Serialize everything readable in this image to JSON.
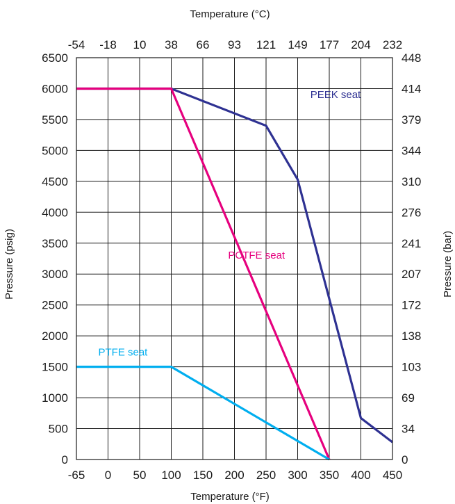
{
  "chart_data": {
    "type": "line",
    "x_axis": {
      "title": "Temperature (°F)",
      "ticks": [
        -65,
        0,
        50,
        100,
        150,
        200,
        250,
        300,
        350,
        400,
        450
      ]
    },
    "x2_axis": {
      "title": "Temperature (°C)",
      "ticks": [
        "-54",
        "-18",
        "10",
        "38",
        "66",
        "93",
        "121",
        "149",
        "177",
        "204",
        "232"
      ]
    },
    "y_axis": {
      "title": "Pressure (psig)",
      "ticks": [
        0,
        500,
        1000,
        1500,
        2000,
        2500,
        3000,
        3500,
        4000,
        4500,
        5000,
        5500,
        6000,
        6500
      ],
      "range": [
        0,
        6500
      ]
    },
    "y2_axis": {
      "title": "Pressure (bar)",
      "ticks": [
        "0",
        "34",
        "69",
        "103",
        "138",
        "172",
        "207",
        "241",
        "276",
        "310",
        "344",
        "379",
        "414",
        "448"
      ]
    },
    "grid": true,
    "series": [
      {
        "name": "PEEK seat",
        "color": "#2e3192",
        "points": [
          [
            -65,
            6000
          ],
          [
            100,
            6000
          ],
          [
            250,
            5400
          ],
          [
            300,
            4530
          ],
          [
            400,
            670
          ],
          [
            450,
            280
          ]
        ],
        "label_at": [
          320,
          5850
        ]
      },
      {
        "name": "PCTFE seat",
        "color": "#e6007e",
        "points": [
          [
            -65,
            6000
          ],
          [
            100,
            6000
          ],
          [
            350,
            0
          ]
        ],
        "label_at": [
          190,
          3250
        ]
      },
      {
        "name": "PTFE seat",
        "color": "#00aeef",
        "points": [
          [
            -65,
            1500
          ],
          [
            100,
            1500
          ],
          [
            350,
            0
          ]
        ],
        "label_at": [
          -20,
          1680
        ]
      }
    ]
  }
}
